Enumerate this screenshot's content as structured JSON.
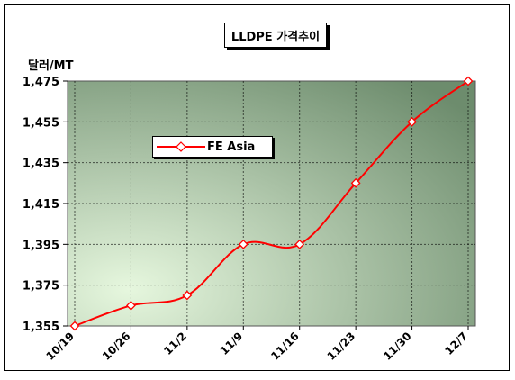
{
  "chart_data": {
    "type": "line",
    "title": "LLDPE 가격추이",
    "ylabel": "달러/MT",
    "categories": [
      "10/19",
      "10/26",
      "11/2",
      "11/9",
      "11/16",
      "11/23",
      "11/30",
      "12/7"
    ],
    "series": [
      {
        "name": "FE Asia",
        "values": [
          1355,
          1365,
          1370,
          1395,
          1395,
          1425,
          1455,
          1475
        ]
      }
    ],
    "ylim": [
      1355,
      1475
    ],
    "yticks": [
      "1,355",
      "1,375",
      "1,395",
      "1,415",
      "1,435",
      "1,455",
      "1,475"
    ],
    "grid": true,
    "legend_position": "upper-left inside plot"
  },
  "colors": {
    "line": "#ff0000",
    "plot_bg_outer": "#6d8c6d",
    "plot_bg_inner": "#e6f7de"
  }
}
